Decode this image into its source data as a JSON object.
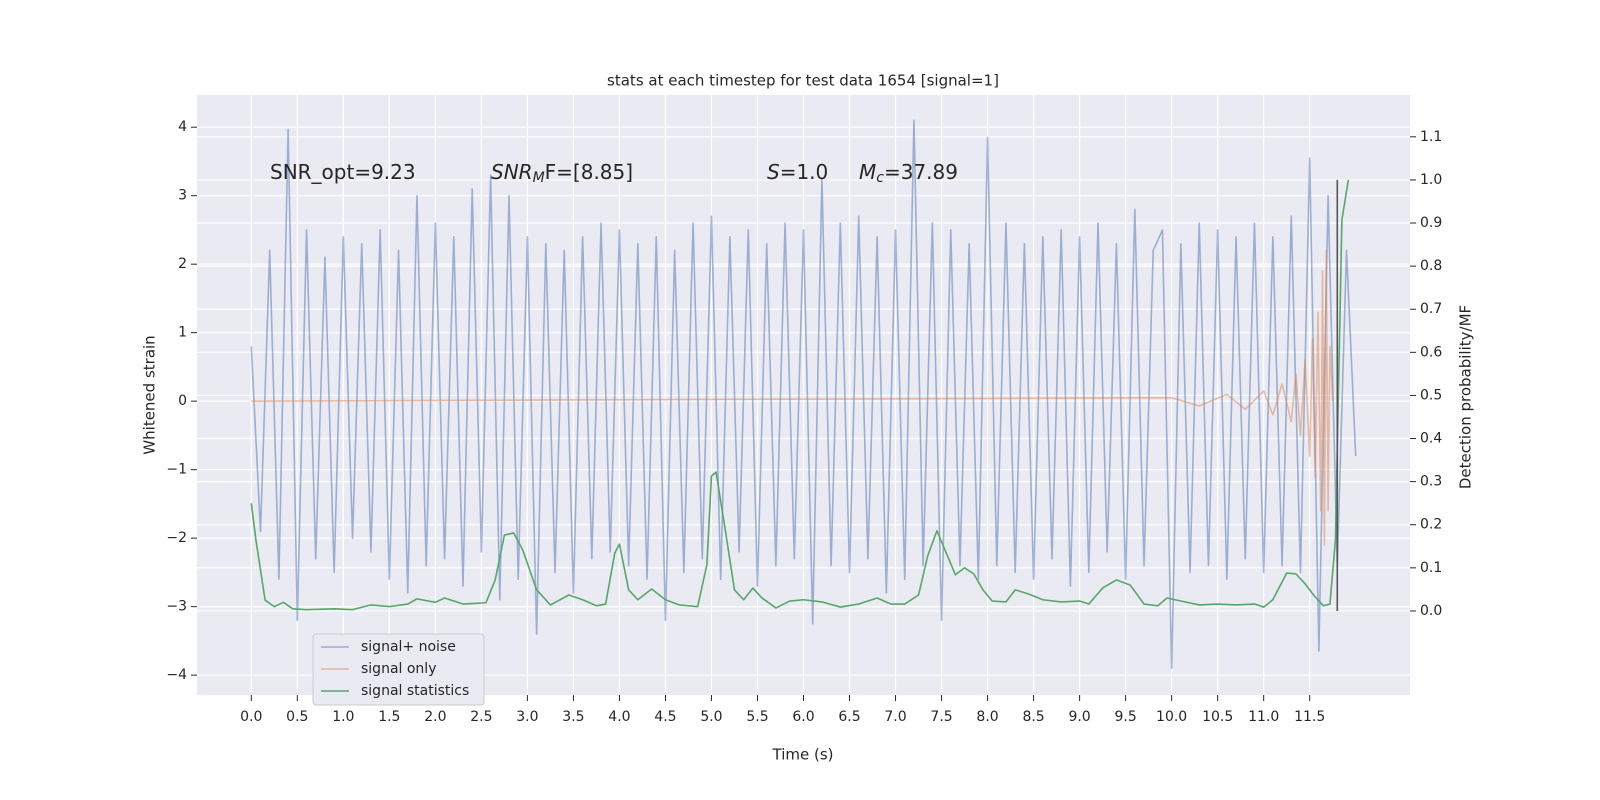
{
  "chart_data": {
    "type": "line",
    "title": "stats at each timestep for test data 1654 [signal=1]",
    "xlabel": "Time (s)",
    "ylabel": "Whitened strain",
    "y2label": "Detection probability/MF",
    "xlim": [
      -0.59,
      12.59
    ],
    "ylim": [
      -4.29,
      4.47
    ],
    "y2lim": [
      -0.195,
      1.197
    ],
    "xticks": [
      {
        "value": 0,
        "label": "0.0"
      },
      0.5,
      {
        "value": 1,
        "label": "1.0"
      },
      1.5,
      {
        "value": 2,
        "label": "2.0"
      },
      2.5,
      {
        "value": 3,
        "label": "3.0"
      },
      3.5,
      {
        "value": 4,
        "label": "4.0"
      },
      4.5,
      {
        "value": 5,
        "label": "5.0"
      },
      5.5,
      {
        "value": 6,
        "label": "6.0"
      },
      6.5,
      {
        "value": 7,
        "label": "7.0"
      },
      7.5,
      {
        "value": 8,
        "label": "8.0"
      },
      8.5,
      {
        "value": 9,
        "label": "9.0"
      },
      9.5,
      {
        "value": 10,
        "label": "10.0"
      },
      10.5,
      {
        "value": 11,
        "label": "11.0"
      },
      11.5
    ],
    "yticks": [
      {
        "value": -4,
        "label": "−4"
      },
      {
        "value": -3,
        "label": "−3"
      },
      {
        "value": -2,
        "label": "−2"
      },
      {
        "value": -1,
        "label": "−1"
      },
      0,
      1,
      2,
      3,
      4
    ],
    "y2ticks": [
      {
        "value": 0,
        "label": "0.0"
      },
      0.1,
      0.2,
      0.3,
      0.4,
      0.5,
      0.6,
      0.7,
      0.8,
      0.9,
      {
        "value": 1,
        "label": "1.0"
      },
      1.1
    ],
    "grid": true,
    "legend": "lower left",
    "annotations": [
      {
        "text": "SNR_opt=9.23"
      },
      {
        "text": "SNR",
        "sub": "M",
        "after": "F=[8.85]"
      },
      {
        "text": "S",
        "after": "=1.0"
      },
      {
        "text": "M",
        "sub": "c",
        "after": "=37.89"
      }
    ],
    "vline": {
      "x": 11.8,
      "y2": [
        0,
        1.0
      ],
      "color": "#555555"
    },
    "series": [
      {
        "name": "signal+ noise",
        "color": "#4c72b0",
        "opacity": 0.5,
        "x": [
          0.0,
          0.1,
          0.2,
          0.3,
          0.4,
          0.5,
          0.6,
          0.7,
          0.8,
          0.9,
          1.0,
          1.1,
          1.2,
          1.3,
          1.4,
          1.5,
          1.6,
          1.7,
          1.8,
          1.9,
          2.0,
          2.1,
          2.2,
          2.3,
          2.4,
          2.5,
          2.6,
          2.7,
          2.8,
          2.9,
          3.0,
          3.1,
          3.2,
          3.3,
          3.4,
          3.5,
          3.6,
          3.7,
          3.8,
          3.9,
          4.0,
          4.1,
          4.2,
          4.3,
          4.4,
          4.5,
          4.6,
          4.7,
          4.8,
          4.9,
          5.0,
          5.1,
          5.2,
          5.3,
          5.4,
          5.5,
          5.6,
          5.7,
          5.8,
          5.9,
          6.0,
          6.1,
          6.2,
          6.3,
          6.4,
          6.5,
          6.6,
          6.7,
          6.8,
          6.9,
          7.0,
          7.1,
          7.2,
          7.3,
          7.4,
          7.5,
          7.6,
          7.7,
          7.8,
          7.9,
          8.0,
          8.1,
          8.2,
          8.3,
          8.4,
          8.5,
          8.6,
          8.7,
          8.8,
          8.9,
          9.0,
          9.1,
          9.2,
          9.3,
          9.4,
          9.5,
          9.6,
          9.7,
          9.8,
          9.9,
          10.0,
          10.1,
          10.2,
          10.3,
          10.4,
          10.5,
          10.6,
          10.7,
          10.8,
          10.9,
          11.0,
          11.1,
          11.2,
          11.3,
          11.4,
          11.5,
          11.6,
          11.7,
          11.8,
          11.9,
          12.0
        ],
        "values": [
          0.8,
          -1.9,
          2.2,
          -2.6,
          3.97,
          -3.2,
          2.5,
          -2.3,
          2.1,
          -2.5,
          2.4,
          -2.0,
          2.3,
          -2.2,
          2.5,
          -2.6,
          2.2,
          -2.8,
          3.0,
          -2.4,
          2.6,
          -2.3,
          2.4,
          -2.7,
          3.1,
          -2.2,
          3.3,
          -2.9,
          3.0,
          -2.6,
          2.4,
          -3.4,
          2.3,
          -2.5,
          2.2,
          -2.8,
          2.4,
          -2.3,
          2.6,
          -2.2,
          2.5,
          -2.4,
          2.3,
          -2.6,
          2.4,
          -3.2,
          2.2,
          -2.5,
          2.6,
          -2.3,
          2.7,
          -2.6,
          2.4,
          -2.2,
          2.5,
          -2.7,
          2.3,
          -2.4,
          2.6,
          -2.3,
          2.5,
          -3.25,
          3.25,
          -2.4,
          2.6,
          -2.5,
          2.7,
          -2.3,
          2.4,
          -2.8,
          2.5,
          -2.6,
          4.1,
          -2.4,
          2.6,
          -3.2,
          2.5,
          -2.4,
          2.3,
          -2.6,
          3.85,
          -2.4,
          2.6,
          -2.5,
          2.3,
          -2.6,
          2.4,
          -2.3,
          2.5,
          -2.7,
          2.4,
          -2.5,
          2.6,
          -2.2,
          2.3,
          -2.6,
          2.8,
          -2.4,
          2.2,
          2.5,
          -3.9,
          2.3,
          -2.5,
          2.6,
          -2.4,
          2.5,
          -2.6,
          2.4,
          -2.3,
          2.6,
          -2.5,
          2.4,
          -2.4,
          2.7,
          -2.5,
          3.55,
          -3.65,
          3.0,
          -2.4,
          2.2,
          -0.8
        ]
      },
      {
        "name": "signal only",
        "color": "#dd8452",
        "opacity": 0.5,
        "x": [
          0.0,
          10.0,
          10.3,
          10.6,
          10.8,
          11.0,
          11.1,
          11.2,
          11.3,
          11.35,
          11.4,
          11.45,
          11.5,
          11.53,
          11.56,
          11.59,
          11.62,
          11.64,
          11.66,
          11.68,
          11.7,
          11.72,
          11.75
        ],
        "values": [
          0,
          0.05,
          -0.07,
          0.1,
          -0.12,
          0.15,
          -0.2,
          0.25,
          -0.3,
          0.4,
          -0.5,
          0.6,
          -0.8,
          0.9,
          -1.1,
          1.3,
          -1.6,
          1.9,
          -2.1,
          2.2,
          -1.6,
          0.8,
          0
        ]
      },
      {
        "name": "signal statistics",
        "color": "#55a868",
        "axis": "y2",
        "x": [
          0.0,
          0.05,
          0.15,
          0.25,
          0.35,
          0.45,
          0.6,
          0.9,
          1.1,
          1.3,
          1.5,
          1.7,
          1.8,
          2.0,
          2.1,
          2.3,
          2.55,
          2.65,
          2.75,
          2.85,
          2.95,
          3.1,
          3.25,
          3.45,
          3.6,
          3.75,
          3.85,
          3.95,
          4.0,
          4.1,
          4.2,
          4.35,
          4.5,
          4.65,
          4.85,
          4.95,
          5.0,
          5.05,
          5.15,
          5.25,
          5.35,
          5.45,
          5.55,
          5.7,
          5.85,
          6.0,
          6.2,
          6.4,
          6.6,
          6.8,
          6.95,
          7.1,
          7.25,
          7.35,
          7.45,
          7.55,
          7.65,
          7.75,
          7.85,
          7.95,
          8.05,
          8.2,
          8.3,
          8.45,
          8.6,
          8.8,
          9.0,
          9.1,
          9.25,
          9.4,
          9.55,
          9.7,
          9.85,
          9.95,
          10.1,
          10.3,
          10.5,
          10.7,
          10.9,
          11.0,
          11.1,
          11.25,
          11.35,
          11.45,
          11.55,
          11.65,
          11.72,
          11.78,
          11.85,
          11.92
        ],
        "values": [
          0.25,
          0.165,
          0.025,
          0.01,
          0.02,
          0.005,
          0.003,
          0.005,
          0.003,
          0.014,
          0.01,
          0.016,
          0.028,
          0.02,
          0.03,
          0.016,
          0.019,
          0.072,
          0.176,
          0.181,
          0.141,
          0.049,
          0.014,
          0.037,
          0.026,
          0.012,
          0.016,
          0.135,
          0.155,
          0.049,
          0.026,
          0.051,
          0.026,
          0.014,
          0.01,
          0.107,
          0.313,
          0.322,
          0.188,
          0.049,
          0.026,
          0.053,
          0.03,
          0.007,
          0.023,
          0.026,
          0.021,
          0.009,
          0.016,
          0.03,
          0.016,
          0.016,
          0.037,
          0.128,
          0.186,
          0.135,
          0.084,
          0.1,
          0.086,
          0.049,
          0.023,
          0.021,
          0.049,
          0.039,
          0.026,
          0.021,
          0.023,
          0.016,
          0.053,
          0.072,
          0.06,
          0.016,
          0.012,
          0.03,
          0.023,
          0.014,
          0.016,
          0.014,
          0.016,
          0.009,
          0.026,
          0.088,
          0.086,
          0.063,
          0.035,
          0.012,
          0.016,
          0.165,
          0.907,
          1.0
        ]
      }
    ]
  }
}
